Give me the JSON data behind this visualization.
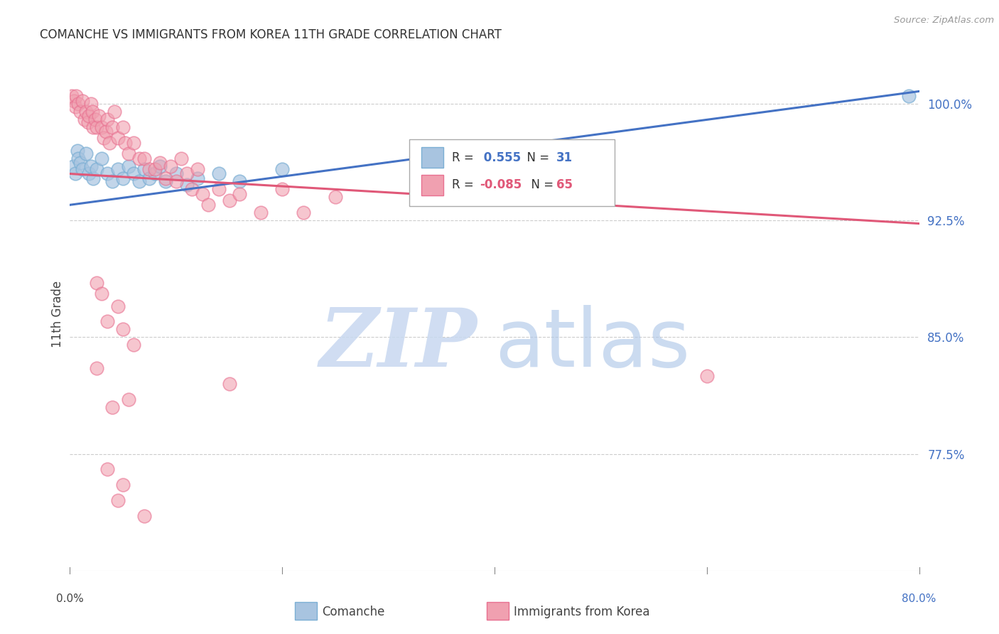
{
  "title": "COMANCHE VS IMMIGRANTS FROM KOREA 11TH GRADE CORRELATION CHART",
  "source": "Source: ZipAtlas.com",
  "ylabel": "11th Grade",
  "xlim": [
    0.0,
    80.0
  ],
  "ylim": [
    70.0,
    103.0
  ],
  "yticks": [
    77.5,
    85.0,
    92.5,
    100.0
  ],
  "ytick_labels": [
    "77.5%",
    "85.0%",
    "92.5%",
    "100.0%"
  ],
  "xtick_labels": [
    "0.0%",
    "80.0%"
  ],
  "grid_color": "#cccccc",
  "background_color": "#ffffff",
  "blue_R": 0.555,
  "blue_N": 31,
  "pink_R": -0.085,
  "pink_N": 65,
  "blue_color": "#a8c4e0",
  "pink_color": "#f0a0b0",
  "blue_edge_color": "#7bafd4",
  "pink_edge_color": "#e87090",
  "blue_line_color": "#4472c4",
  "pink_line_color": "#e05878",
  "ytick_color": "#4472c4",
  "xtick_right_color": "#4472c4",
  "watermark_zip_color": "#c8d8f0",
  "watermark_atlas_color": "#b0c8e8",
  "blue_scatter": [
    [
      0.3,
      96.0
    ],
    [
      0.5,
      95.5
    ],
    [
      0.7,
      97.0
    ],
    [
      0.8,
      96.5
    ],
    [
      1.0,
      96.2
    ],
    [
      1.2,
      95.8
    ],
    [
      1.5,
      96.8
    ],
    [
      1.8,
      95.5
    ],
    [
      2.0,
      96.0
    ],
    [
      2.2,
      95.2
    ],
    [
      2.5,
      95.8
    ],
    [
      3.0,
      96.5
    ],
    [
      3.5,
      95.5
    ],
    [
      4.0,
      95.0
    ],
    [
      4.5,
      95.8
    ],
    [
      5.0,
      95.2
    ],
    [
      5.5,
      96.0
    ],
    [
      6.0,
      95.5
    ],
    [
      6.5,
      95.0
    ],
    [
      7.0,
      95.8
    ],
    [
      7.5,
      95.2
    ],
    [
      8.0,
      95.5
    ],
    [
      8.5,
      96.0
    ],
    [
      9.0,
      95.0
    ],
    [
      10.0,
      95.5
    ],
    [
      11.0,
      94.8
    ],
    [
      12.0,
      95.2
    ],
    [
      14.0,
      95.5
    ],
    [
      16.0,
      95.0
    ],
    [
      20.0,
      95.8
    ],
    [
      79.0,
      100.5
    ]
  ],
  "pink_scatter": [
    [
      0.2,
      100.5
    ],
    [
      0.4,
      100.2
    ],
    [
      0.5,
      99.8
    ],
    [
      0.6,
      100.5
    ],
    [
      0.8,
      100.0
    ],
    [
      1.0,
      99.5
    ],
    [
      1.2,
      100.2
    ],
    [
      1.4,
      99.0
    ],
    [
      1.5,
      99.5
    ],
    [
      1.7,
      98.8
    ],
    [
      1.8,
      99.2
    ],
    [
      2.0,
      100.0
    ],
    [
      2.1,
      99.5
    ],
    [
      2.2,
      98.5
    ],
    [
      2.4,
      99.0
    ],
    [
      2.5,
      98.5
    ],
    [
      2.7,
      99.2
    ],
    [
      3.0,
      98.5
    ],
    [
      3.2,
      97.8
    ],
    [
      3.4,
      98.2
    ],
    [
      3.5,
      99.0
    ],
    [
      3.7,
      97.5
    ],
    [
      4.0,
      98.5
    ],
    [
      4.2,
      99.5
    ],
    [
      4.5,
      97.8
    ],
    [
      5.0,
      98.5
    ],
    [
      5.2,
      97.5
    ],
    [
      5.5,
      96.8
    ],
    [
      6.0,
      97.5
    ],
    [
      6.5,
      96.5
    ],
    [
      7.0,
      96.5
    ],
    [
      7.5,
      95.8
    ],
    [
      8.0,
      95.8
    ],
    [
      8.5,
      96.2
    ],
    [
      9.0,
      95.2
    ],
    [
      9.5,
      96.0
    ],
    [
      10.0,
      95.0
    ],
    [
      10.5,
      96.5
    ],
    [
      11.0,
      95.5
    ],
    [
      11.5,
      94.5
    ],
    [
      12.0,
      95.8
    ],
    [
      12.5,
      94.2
    ],
    [
      13.0,
      93.5
    ],
    [
      14.0,
      94.5
    ],
    [
      15.0,
      93.8
    ],
    [
      16.0,
      94.2
    ],
    [
      18.0,
      93.0
    ],
    [
      20.0,
      94.5
    ],
    [
      22.0,
      93.0
    ],
    [
      25.0,
      94.0
    ],
    [
      2.5,
      88.5
    ],
    [
      3.0,
      87.8
    ],
    [
      3.5,
      86.0
    ],
    [
      4.5,
      87.0
    ],
    [
      5.0,
      85.5
    ],
    [
      6.0,
      84.5
    ],
    [
      2.5,
      83.0
    ],
    [
      4.0,
      80.5
    ],
    [
      5.5,
      81.0
    ],
    [
      15.0,
      82.0
    ],
    [
      60.0,
      82.5
    ],
    [
      3.5,
      76.5
    ],
    [
      5.0,
      75.5
    ],
    [
      4.5,
      74.5
    ],
    [
      7.0,
      73.5
    ]
  ],
  "blue_trend": [
    0.0,
    80.0,
    93.5,
    100.8
  ],
  "pink_trend": [
    0.0,
    80.0,
    95.5,
    92.3
  ]
}
